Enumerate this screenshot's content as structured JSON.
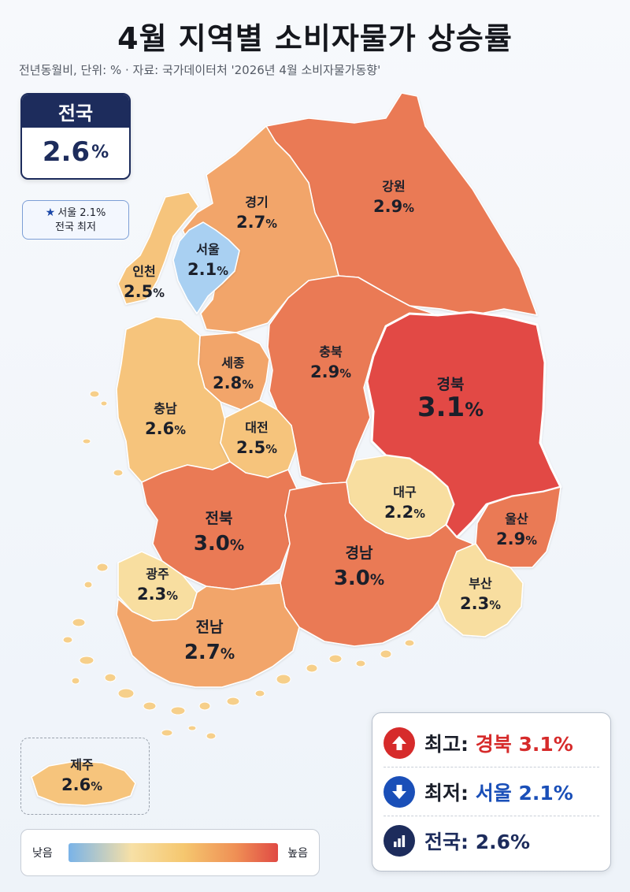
{
  "header": {
    "title": "4월 지역별 소비자물가 상승률",
    "subtitle": "전년동월비, 단위: % · 자료: 국가데이터처 '2026년 4월 소비자물가동향'"
  },
  "national_box": {
    "label": "전국",
    "value": "2.6",
    "unit": "%"
  },
  "note": {
    "star": "★",
    "line1": "서울 2.1%",
    "line2": "전국 최저"
  },
  "legend": {
    "low": "낮음",
    "high": "높음"
  },
  "summary": {
    "max_label": "최고:",
    "max_region": "경북",
    "max_value": "3.1%",
    "min_label": "최저:",
    "min_region": "서울",
    "min_value": "2.1%",
    "nat_label": "전국:",
    "nat_value": "2.6%"
  },
  "colors": {
    "lowest": "#a9d0f2",
    "low": "#f8dea0",
    "mid": "#f6c47c",
    "mid_high": "#f2a56a",
    "high": "#ea7a54",
    "highest": "#e24a45",
    "max_accent": "#d62b2b",
    "min_accent": "#1a4fb8",
    "navy": "#1d2c5c"
  },
  "icons": {
    "max": "arrow-up-icon",
    "min": "arrow-down-icon",
    "national": "bar-chart-icon"
  },
  "regions": [
    {
      "id": "gangwon",
      "name": "강원",
      "value": 2.9
    },
    {
      "id": "gyeonggi",
      "name": "경기",
      "value": 2.7
    },
    {
      "id": "seoul",
      "name": "서울",
      "value": 2.1
    },
    {
      "id": "incheon",
      "name": "인천",
      "value": 2.5
    },
    {
      "id": "chungbuk",
      "name": "충북",
      "value": 2.9
    },
    {
      "id": "sejong",
      "name": "세종",
      "value": 2.8
    },
    {
      "id": "chungnam",
      "name": "충남",
      "value": 2.6
    },
    {
      "id": "daejeon",
      "name": "대전",
      "value": 2.5
    },
    {
      "id": "gyeongbuk",
      "name": "경북",
      "value": 3.1
    },
    {
      "id": "daegu",
      "name": "대구",
      "value": 2.2
    },
    {
      "id": "jeonbuk",
      "name": "전북",
      "value": 3.0
    },
    {
      "id": "ulsan",
      "name": "울산",
      "value": 2.9
    },
    {
      "id": "gyeongnam",
      "name": "경남",
      "value": 3.0
    },
    {
      "id": "gwangju",
      "name": "광주",
      "value": 2.3
    },
    {
      "id": "busan",
      "name": "부산",
      "value": 2.3
    },
    {
      "id": "jeonnam",
      "name": "전남",
      "value": 2.7
    },
    {
      "id": "jeju",
      "name": "제주",
      "value": 2.6
    }
  ]
}
